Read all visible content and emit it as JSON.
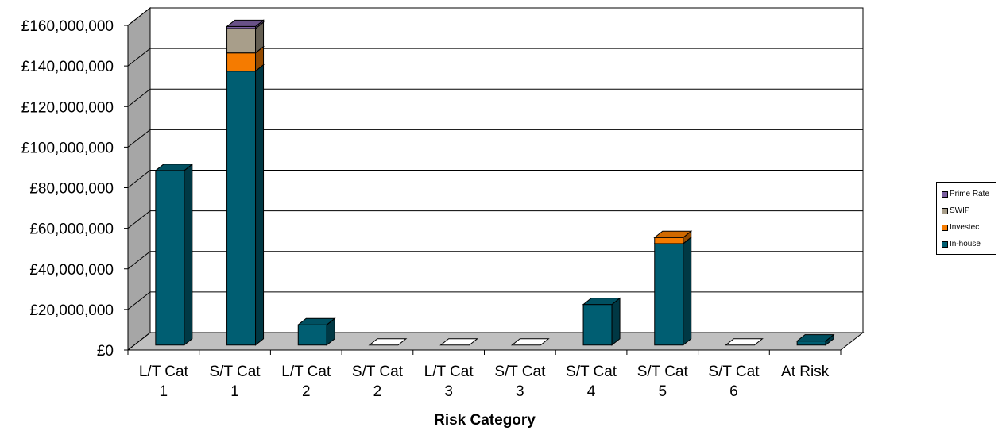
{
  "chart_data": {
    "type": "bar",
    "stacked": true,
    "three_d": true,
    "xlabel": "Risk Category",
    "ylabel": "",
    "title": "",
    "categories": [
      [
        "L/T Cat",
        "1"
      ],
      [
        "S/T Cat",
        "1"
      ],
      [
        "L/T Cat",
        "2"
      ],
      [
        "S/T Cat",
        "2"
      ],
      [
        "L/T Cat",
        "3"
      ],
      [
        "S/T Cat",
        "3"
      ],
      [
        "S/T Cat",
        "4"
      ],
      [
        "S/T Cat",
        "5"
      ],
      [
        "S/T Cat",
        "6"
      ],
      [
        "At Risk",
        ""
      ]
    ],
    "series": [
      {
        "name": "In-house",
        "color": "#005E72",
        "values": [
          86000000,
          135000000,
          10000000,
          0,
          0,
          0,
          20000000,
          50000000,
          0,
          2000000
        ]
      },
      {
        "name": "Investec",
        "color": "#F57B00",
        "values": [
          0,
          9000000,
          0,
          0,
          0,
          0,
          0,
          3000000,
          0,
          0
        ]
      },
      {
        "name": "SWIP",
        "color": "#A89E8A",
        "values": [
          0,
          12000000,
          0,
          0,
          0,
          0,
          0,
          0,
          0,
          0
        ]
      },
      {
        "name": "Prime Rate",
        "color": "#7B5FA0",
        "values": [
          0,
          1000000,
          0,
          0,
          0,
          0,
          0,
          0,
          0,
          0
        ]
      }
    ],
    "ylim": [
      0,
      160000000
    ],
    "yticks": [
      "£0",
      "£20,000,000",
      "£40,000,000",
      "£60,000,000",
      "£80,000,000",
      "£100,000,000",
      "£120,000,000",
      "£140,000,000",
      "£160,000,000"
    ],
    "grid": true,
    "legend_position": "right",
    "legend_order": [
      "Prime Rate",
      "SWIP",
      "Investec",
      "In-house"
    ],
    "wall_color": "#A6A6A6",
    "floor_color": "#C0C0C0"
  }
}
